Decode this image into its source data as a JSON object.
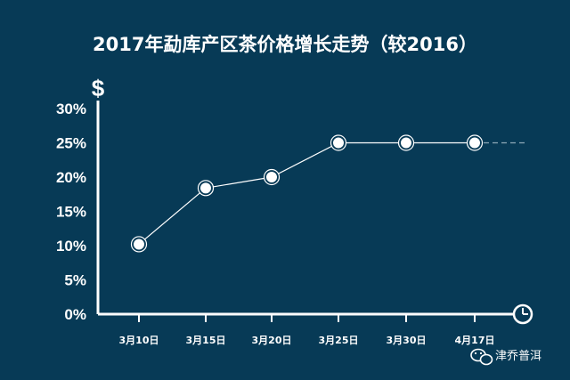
{
  "chart_data": {
    "type": "line",
    "title": "2017年勐库产区茶价格增长走势（较2016）",
    "y_unit_symbol": "$",
    "categories": [
      "3月10日",
      "3月15日",
      "3月20日",
      "3月25日",
      "3月30日",
      "4月17日"
    ],
    "series": [
      {
        "values": [
          10.2,
          18.4,
          20,
          25,
          25,
          25
        ]
      }
    ],
    "yticks": [
      "0%",
      "5%",
      "10%",
      "15%",
      "20%",
      "25%",
      "30%"
    ],
    "ytick_values": [
      0,
      5,
      10,
      15,
      20,
      25,
      30
    ],
    "ylim": [
      0,
      30
    ],
    "projection_after_last_point": true,
    "grid": false,
    "x_axis_end_icon": "clock-icon",
    "colors": {
      "background": "#073a56",
      "line": "#ffffff",
      "projection": "#8fa9b8",
      "marker_fill": "#ffffff",
      "marker_ring": "#073a56"
    }
  },
  "watermark": {
    "icon": "wechat-icon",
    "text": "津乔普洱"
  }
}
